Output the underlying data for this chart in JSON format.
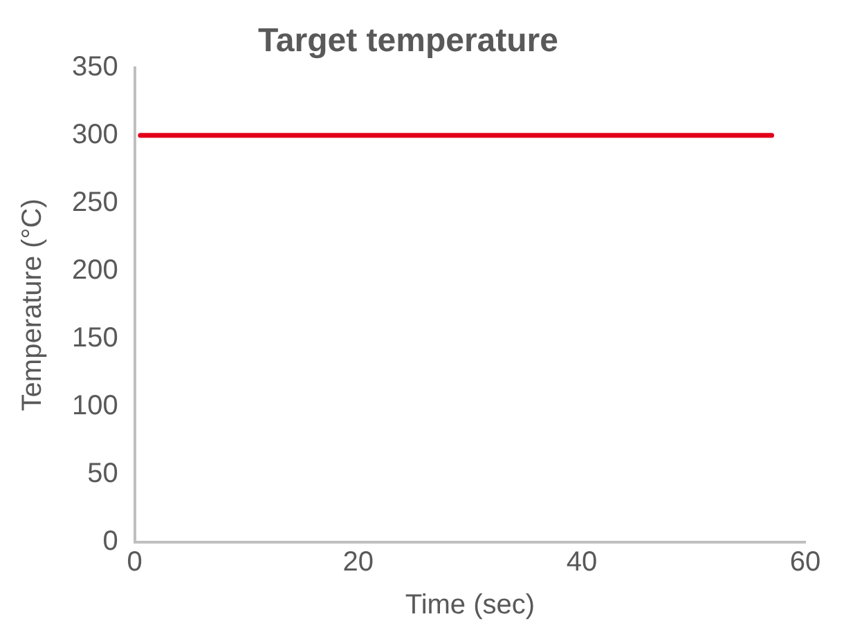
{
  "chart_data": {
    "type": "line",
    "title": "Target temperature",
    "xlabel": "Time (sec)",
    "ylabel": "Temperature (°C)",
    "x": [
      0.5,
      57
    ],
    "series": [
      {
        "color": "#e2001a",
        "values": [
          300,
          300
        ]
      }
    ],
    "xlim": [
      0,
      60
    ],
    "xticks": [
      0,
      20,
      40,
      60
    ],
    "ylim": [
      0,
      350
    ],
    "yticks": [
      0,
      50,
      100,
      150,
      200,
      250,
      300,
      350
    ],
    "grid": false,
    "legend": false,
    "marker": "none",
    "line_style": "solid"
  }
}
